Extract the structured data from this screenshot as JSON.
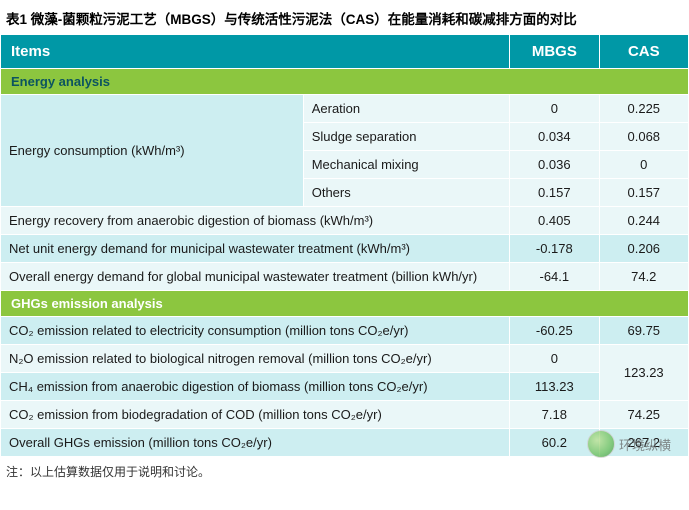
{
  "title": "表1 微藻-菌颗粒污泥工艺（MBGS）与传统活性污泥法（CAS）在能量消耗和碳减排方面的对比",
  "header": {
    "items": "Items",
    "mbgs": "MBGS",
    "cas": "CAS"
  },
  "sections": {
    "energy": "Energy analysis",
    "ghg": "GHGs emission analysis"
  },
  "energy": {
    "consumption_label": "Energy consumption (kWh/m³)",
    "sub": {
      "aeration": "Aeration",
      "sludge": "Sludge separation",
      "mixing": "Mechanical mixing",
      "others": "Others"
    },
    "vals": {
      "aeration": {
        "mbgs": "0",
        "cas": "0.225"
      },
      "sludge": {
        "mbgs": "0.034",
        "cas": "0.068"
      },
      "mixing": {
        "mbgs": "0.036",
        "cas": "0"
      },
      "others": {
        "mbgs": "0.157",
        "cas": "0.157"
      }
    },
    "recovery": {
      "label": "Energy recovery from anaerobic digestion of biomass (kWh/m³)",
      "mbgs": "0.405",
      "cas": "0.244"
    },
    "net_unit": {
      "label": "Net unit energy demand for municipal wastewater treatment (kWh/m³)",
      "mbgs": "-0.178",
      "cas": "0.206"
    },
    "overall": {
      "label": "Overall energy demand for global municipal wastewater treatment (billion kWh/yr)",
      "mbgs": "-64.1",
      "cas": "74.2"
    }
  },
  "ghg": {
    "co2_elec": {
      "label": "CO₂ emission related to electricity consumption (million tons CO₂e/yr)",
      "mbgs": "-60.25",
      "cas": "69.75"
    },
    "n2o": {
      "label": "N₂O emission related to biological nitrogen removal (million tons CO₂e/yr)",
      "mbgs": "0"
    },
    "ch4": {
      "label": "CH₄ emission from anaerobic digestion of biomass (million tons CO₂e/yr)",
      "mbgs": "113.23"
    },
    "n2o_ch4_cas_merged": "123.23",
    "co2_cod": {
      "label": "CO₂ emission from biodegradation of COD (million tons CO₂e/yr)",
      "mbgs": "7.18",
      "cas": "74.25"
    },
    "overall": {
      "label": "Overall GHGs emission (million tons CO₂e/yr)",
      "mbgs": "60.2",
      "cas": "267.2"
    }
  },
  "footnote": "注：以上估算数据仅用于说明和讨论。",
  "watermark": "环境纵横"
}
